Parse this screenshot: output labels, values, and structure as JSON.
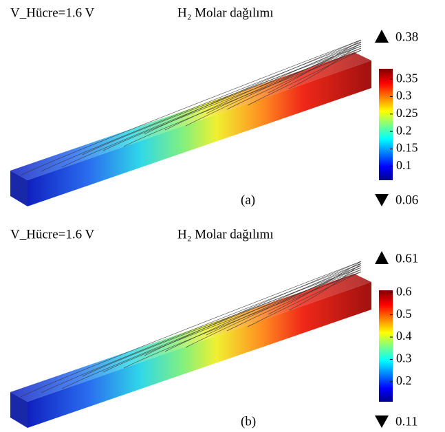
{
  "chart_data": [
    {
      "type": "field3d",
      "parameter": "V_Hücre=1.6 V",
      "title": "H₂ Molar dağılımı",
      "caption": "(a)",
      "ylim": [
        0.06,
        0.38
      ],
      "yticks": [
        0.1,
        0.15,
        0.2,
        0.25,
        0.3,
        0.35
      ]
    },
    {
      "type": "field3d",
      "parameter": "V_Hücre=1.6 V",
      "title": "H₂ Molar dağılımı",
      "caption": "(b)",
      "ylim": [
        0.11,
        0.61
      ],
      "yticks": [
        0.2,
        0.3,
        0.4,
        0.5,
        0.6
      ]
    }
  ]
}
